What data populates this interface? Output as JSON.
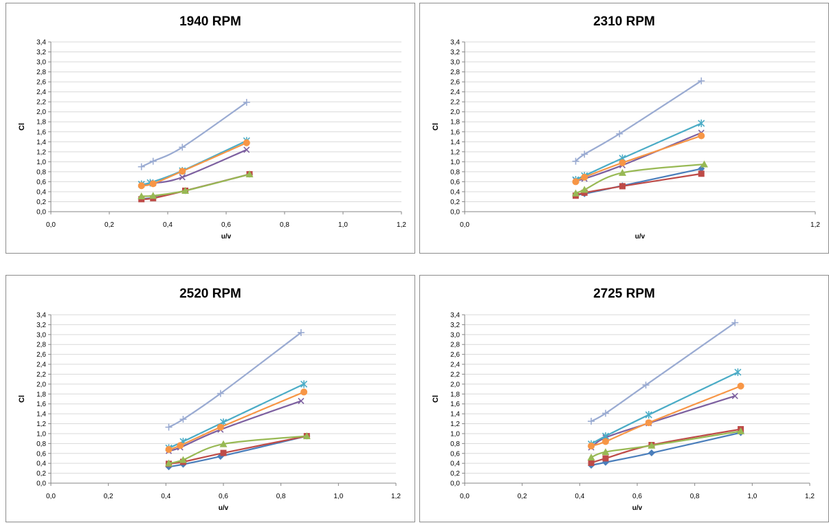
{
  "chart_data": [
    {
      "type": "line",
      "title": "1940 RPM",
      "xlabel": "u/v",
      "ylabel": "Cl",
      "xlim": [
        0,
        1.2
      ],
      "ylim": [
        0,
        3.4
      ],
      "x_ticks": [
        "0,0",
        "0,2",
        "0,4",
        "0,6",
        "0,8",
        "1,0",
        "1,2"
      ],
      "y_ticks": [
        "0,0",
        "0,2",
        "0,4",
        "0,6",
        "0,8",
        "1,0",
        "1,2",
        "1,4",
        "1,6",
        "1,8",
        "2,0",
        "2,2",
        "2,4",
        "2,6",
        "2,8",
        "3,0",
        "3,2",
        "3,4"
      ],
      "grid": "horizontal",
      "series": [
        {
          "color": "#4a7ebb",
          "marker": "diamond",
          "x": [
            0.31,
            0.35,
            0.46,
            0.68
          ],
          "y": [
            0.26,
            0.28,
            0.42,
            0.75
          ]
        },
        {
          "color": "#be4b48",
          "marker": "square",
          "x": [
            0.31,
            0.35,
            0.46,
            0.68
          ],
          "y": [
            0.25,
            0.27,
            0.42,
            0.75
          ]
        },
        {
          "color": "#98b954",
          "marker": "triangle",
          "x": [
            0.31,
            0.35,
            0.46,
            0.68
          ],
          "y": [
            0.31,
            0.32,
            0.42,
            0.75
          ]
        },
        {
          "color": "#7d60a0",
          "marker": "x",
          "x": [
            0.31,
            0.35,
            0.45,
            0.67
          ],
          "y": [
            0.55,
            0.57,
            0.69,
            1.24
          ]
        },
        {
          "color": "#4bacc6",
          "marker": "star",
          "x": [
            0.31,
            0.34,
            0.45,
            0.67
          ],
          "y": [
            0.55,
            0.58,
            0.82,
            1.42
          ]
        },
        {
          "color": "#f79646",
          "marker": "circle",
          "x": [
            0.31,
            0.35,
            0.45,
            0.67
          ],
          "y": [
            0.52,
            0.56,
            0.81,
            1.38
          ]
        },
        {
          "color": "#9aabd2",
          "marker": "plus",
          "x": [
            0.31,
            0.35,
            0.45,
            0.67
          ],
          "y": [
            0.9,
            1.01,
            1.29,
            2.19
          ]
        }
      ]
    },
    {
      "type": "line",
      "title": "2310 RPM",
      "xlabel": "u/v",
      "ylabel": "Cl",
      "xlim": [
        0,
        1.2
      ],
      "ylim": [
        0,
        3.4
      ],
      "x_ticks": [
        "0,0",
        "1,2"
      ],
      "y_ticks": [
        "0,0",
        "0,2",
        "0,4",
        "0,6",
        "0,8",
        "1,0",
        "1,2",
        "1,4",
        "1,6",
        "1,8",
        "2,0",
        "2,2",
        "2,4",
        "2,6",
        "2,8",
        "3,0",
        "3,2",
        "3,4"
      ],
      "grid": "horizontal",
      "series": [
        {
          "color": "#4a7ebb",
          "marker": "diamond",
          "x": [
            0.38,
            0.41,
            0.54,
            0.81
          ],
          "y": [
            0.34,
            0.36,
            0.52,
            0.86
          ]
        },
        {
          "color": "#be4b48",
          "marker": "square",
          "x": [
            0.38,
            0.41,
            0.54,
            0.81
          ],
          "y": [
            0.32,
            0.38,
            0.51,
            0.76
          ]
        },
        {
          "color": "#98b954",
          "marker": "triangle",
          "x": [
            0.38,
            0.41,
            0.54,
            0.82
          ],
          "y": [
            0.37,
            0.44,
            0.78,
            0.95
          ]
        },
        {
          "color": "#7d60a0",
          "marker": "x",
          "x": [
            0.38,
            0.41,
            0.54,
            0.81
          ],
          "y": [
            0.63,
            0.66,
            0.93,
            1.58
          ]
        },
        {
          "color": "#4bacc6",
          "marker": "star",
          "x": [
            0.38,
            0.41,
            0.54,
            0.81
          ],
          "y": [
            0.64,
            0.72,
            1.07,
            1.77
          ]
        },
        {
          "color": "#f79646",
          "marker": "circle",
          "x": [
            0.38,
            0.41,
            0.54,
            0.81
          ],
          "y": [
            0.6,
            0.69,
            0.98,
            1.52
          ]
        },
        {
          "color": "#9aabd2",
          "marker": "plus",
          "x": [
            0.38,
            0.41,
            0.53,
            0.81
          ],
          "y": [
            1.01,
            1.15,
            1.56,
            2.62
          ]
        }
      ]
    },
    {
      "type": "line",
      "title": "2520 RPM",
      "xlabel": "u/v",
      "ylabel": "Cl",
      "xlim": [
        0,
        1.2
      ],
      "ylim": [
        0,
        3.4
      ],
      "x_ticks": [
        "0,0",
        "0,2",
        "0,4",
        "0,6",
        "0,8",
        "1,0",
        "1,2"
      ],
      "y_ticks": [
        "0,0",
        "0,2",
        "0,4",
        "0,6",
        "0,8",
        "1,0",
        "1,2",
        "1,4",
        "1,6",
        "1,8",
        "2,0",
        "2,2",
        "2,4",
        "2,6",
        "2,8",
        "3,0",
        "3,2",
        "3,4"
      ],
      "grid": "horizontal",
      "series": [
        {
          "color": "#4a7ebb",
          "marker": "diamond",
          "x": [
            0.41,
            0.46,
            0.59,
            0.89
          ],
          "y": [
            0.33,
            0.38,
            0.54,
            0.95
          ]
        },
        {
          "color": "#be4b48",
          "marker": "square",
          "x": [
            0.41,
            0.46,
            0.6,
            0.89
          ],
          "y": [
            0.39,
            0.43,
            0.61,
            0.95
          ]
        },
        {
          "color": "#98b954",
          "marker": "triangle",
          "x": [
            0.41,
            0.46,
            0.6,
            0.89
          ],
          "y": [
            0.4,
            0.47,
            0.79,
            0.95
          ]
        },
        {
          "color": "#7d60a0",
          "marker": "x",
          "x": [
            0.41,
            0.45,
            0.59,
            0.87
          ],
          "y": [
            0.65,
            0.72,
            1.08,
            1.66
          ]
        },
        {
          "color": "#4bacc6",
          "marker": "star",
          "x": [
            0.41,
            0.46,
            0.6,
            0.88
          ],
          "y": [
            0.71,
            0.84,
            1.23,
            2.0
          ]
        },
        {
          "color": "#f79646",
          "marker": "circle",
          "x": [
            0.41,
            0.45,
            0.59,
            0.88
          ],
          "y": [
            0.68,
            0.76,
            1.13,
            1.84
          ]
        },
        {
          "color": "#9aabd2",
          "marker": "plus",
          "x": [
            0.41,
            0.46,
            0.59,
            0.87
          ],
          "y": [
            1.13,
            1.29,
            1.81,
            3.04
          ]
        }
      ]
    },
    {
      "type": "line",
      "title": "2725 RPM",
      "xlabel": "u/v",
      "ylabel": "Cl",
      "xlim": [
        0,
        1.2
      ],
      "ylim": [
        0,
        3.4
      ],
      "x_ticks": [
        "0,0",
        "0,2",
        "0,4",
        "0,6",
        "0,8",
        "1,0",
        "1,2"
      ],
      "y_ticks": [
        "0,0",
        "0,2",
        "0,4",
        "0,6",
        "0,8",
        "1,0",
        "1,2",
        "1,4",
        "1,6",
        "1,8",
        "2,0",
        "2,2",
        "2,4",
        "2,6",
        "2,8",
        "3,0",
        "3,2",
        "3,4"
      ],
      "grid": "horizontal",
      "series": [
        {
          "color": "#4a7ebb",
          "marker": "diamond",
          "x": [
            0.44,
            0.49,
            0.65,
            0.96
          ],
          "y": [
            0.36,
            0.42,
            0.61,
            1.02
          ]
        },
        {
          "color": "#be4b48",
          "marker": "square",
          "x": [
            0.44,
            0.49,
            0.65,
            0.96
          ],
          "y": [
            0.41,
            0.5,
            0.77,
            1.09
          ]
        },
        {
          "color": "#98b954",
          "marker": "triangle",
          "x": [
            0.44,
            0.49,
            0.65,
            0.96
          ],
          "y": [
            0.52,
            0.63,
            0.76,
            1.05
          ]
        },
        {
          "color": "#7d60a0",
          "marker": "x",
          "x": [
            0.44,
            0.49,
            0.64,
            0.94
          ],
          "y": [
            0.72,
            0.92,
            1.21,
            1.76
          ]
        },
        {
          "color": "#4bacc6",
          "marker": "star",
          "x": [
            0.44,
            0.49,
            0.64,
            0.95
          ],
          "y": [
            0.79,
            0.95,
            1.38,
            2.24
          ]
        },
        {
          "color": "#f79646",
          "marker": "circle",
          "x": [
            0.44,
            0.49,
            0.64,
            0.96
          ],
          "y": [
            0.75,
            0.84,
            1.22,
            1.96
          ]
        },
        {
          "color": "#9aabd2",
          "marker": "plus",
          "x": [
            0.44,
            0.49,
            0.63,
            0.94
          ],
          "y": [
            1.25,
            1.41,
            1.98,
            3.24
          ]
        }
      ]
    }
  ]
}
